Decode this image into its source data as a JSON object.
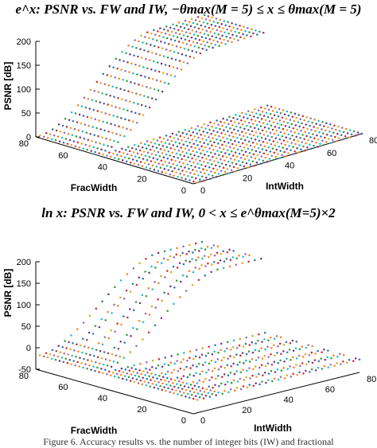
{
  "chart_data": [
    {
      "type": "scatter",
      "title": "e^x: PSNR vs. FW and IW, −θmax(M = 5) ≤ x ≤ θmax(M = 5)",
      "xlabel": "IntWidth",
      "ylabel": "FracWidth",
      "zlabel": "PSNR [dB]",
      "xlim": [
        0,
        80
      ],
      "ylim": [
        0,
        80
      ],
      "zlim": [
        0,
        200
      ],
      "x_ticks": [
        "0",
        "20",
        "40",
        "60",
        "80"
      ],
      "y_ticks": [
        "0",
        "20",
        "40",
        "60",
        "80"
      ],
      "z_ticks": [
        "0",
        "50",
        "100",
        "150",
        "200"
      ],
      "surface": {
        "plateau_low": 0,
        "plateau_high": 150,
        "rise_start_intwidth": 2,
        "rise_end_intwidth": 55,
        "high_rise_fracwidth": 50
      }
    },
    {
      "type": "scatter",
      "title": "ln x: PSNR vs. FW and IW, 0 < x ≤ e^θmax(M=5)×2",
      "xlabel": "IntWidth",
      "ylabel": "FracWidth",
      "zlabel": "PSNR [dB]",
      "xlim": [
        0,
        80
      ],
      "ylim": [
        0,
        80
      ],
      "zlim": [
        -50,
        200
      ],
      "x_ticks": [
        "0",
        "20",
        "40",
        "60",
        "80"
      ],
      "y_ticks": [
        "0",
        "20",
        "40",
        "60",
        "80"
      ],
      "z_ticks": [
        "-50",
        "0",
        "50",
        "100",
        "150",
        "200"
      ],
      "surface": {
        "plateau_low": -20,
        "plateau_high": 150,
        "rise_start_intwidth": 2,
        "rise_end_intwidth": 60,
        "high_rise_fracwidth": 50
      }
    }
  ],
  "palette": [
    "#e8a317",
    "#d62728",
    "#1f77b4",
    "#7b2d8e",
    "#2ca02c",
    "#17becf",
    "#ff7f0e",
    "#9467bd"
  ],
  "caption": "Figure 6. Accuracy results vs. the number of integer bits (IW) and fractional"
}
